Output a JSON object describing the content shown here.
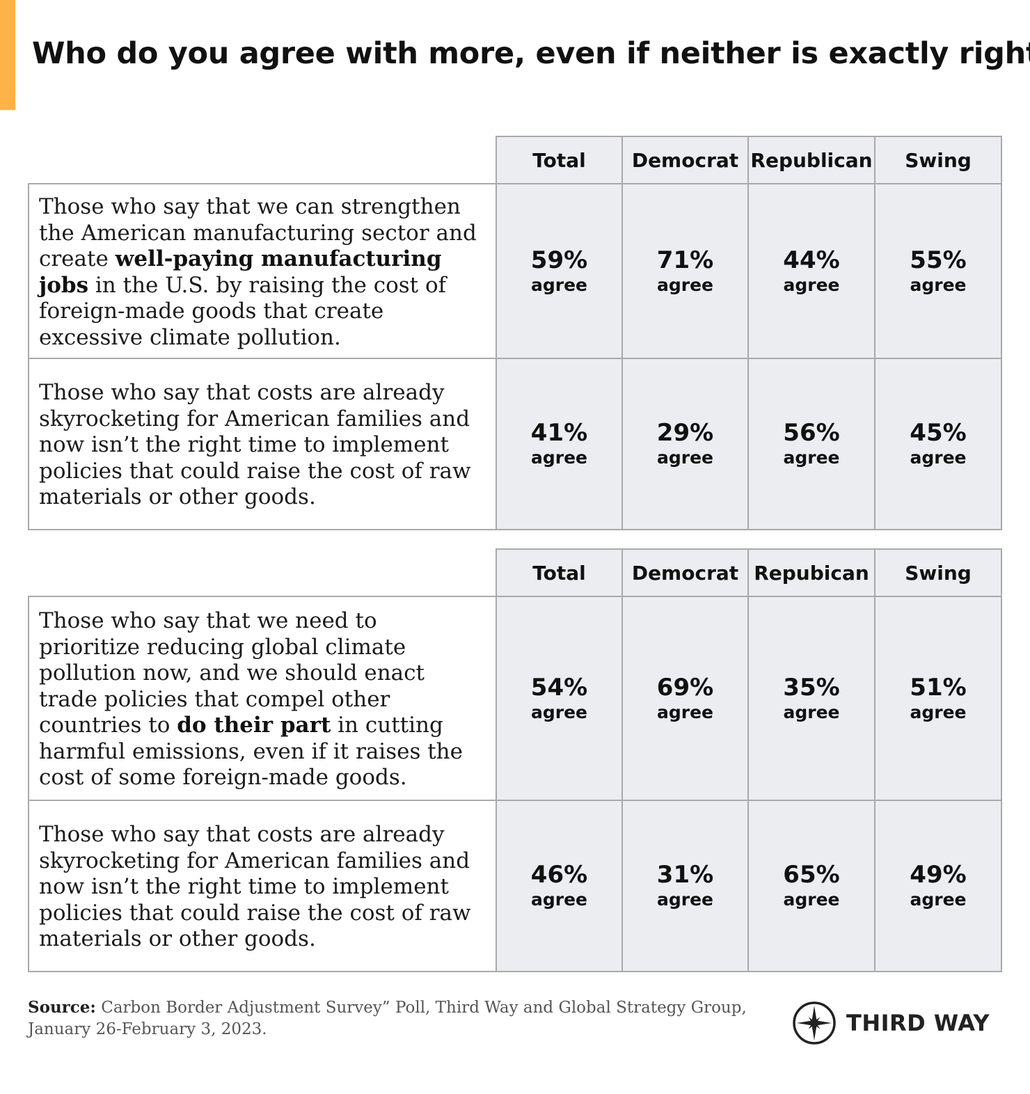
{
  "title": "Who do you agree with more, even if neither is exactly right?",
  "colors": {
    "accent": "#ffb347",
    "cell_background": "#ebedf1",
    "border": "#a9a9a9"
  },
  "chart_data": [
    {
      "type": "table",
      "columns": [
        "Total",
        "Democrat",
        "Republican",
        "Swing"
      ],
      "rows": [
        {
          "statement_parts": [
            "Those who say that we can strengthen the American manufacturing sector and create ",
            "well-paying manufacturing jobs",
            " in the U.S. by raising the cost of foreign-made goods that create excessive climate pollution."
          ],
          "values": [
            "59%",
            "71%",
            "44%",
            "55%"
          ],
          "unit": "agree"
        },
        {
          "statement_parts": [
            "Those who say that costs are already skyrocketing for American families and now isn’t the right time to implement policies that could raise the cost of raw materials or other goods."
          ],
          "values": [
            "41%",
            "29%",
            "56%",
            "45%"
          ],
          "unit": "agree"
        }
      ]
    },
    {
      "type": "table",
      "columns": [
        "Total",
        "Democrat",
        "Repubican",
        "Swing"
      ],
      "rows": [
        {
          "statement_parts": [
            "Those who say that we need to prioritize reducing global climate pollution now, and we should enact trade policies that compel other countries to ",
            "do their part",
            " in cutting harmful emissions, even if it raises the cost of some foreign-made goods."
          ],
          "values": [
            "54%",
            "69%",
            "35%",
            "51%"
          ],
          "unit": "agree"
        },
        {
          "statement_parts": [
            "Those who say that costs are already skyrocketing for American families and now isn’t the right time to implement policies that could raise the cost of raw materials or other goods."
          ],
          "values": [
            "46%",
            "31%",
            "65%",
            "49%"
          ],
          "unit": "agree"
        }
      ]
    }
  ],
  "source": {
    "label": "Source:",
    "text": " Carbon Border Adjustment Survey” Poll, Third Way and Global Strategy Group, January 26-February 3, 2023."
  },
  "logo": {
    "text": "THIRD WAY",
    "icon": "compass-star-icon"
  }
}
